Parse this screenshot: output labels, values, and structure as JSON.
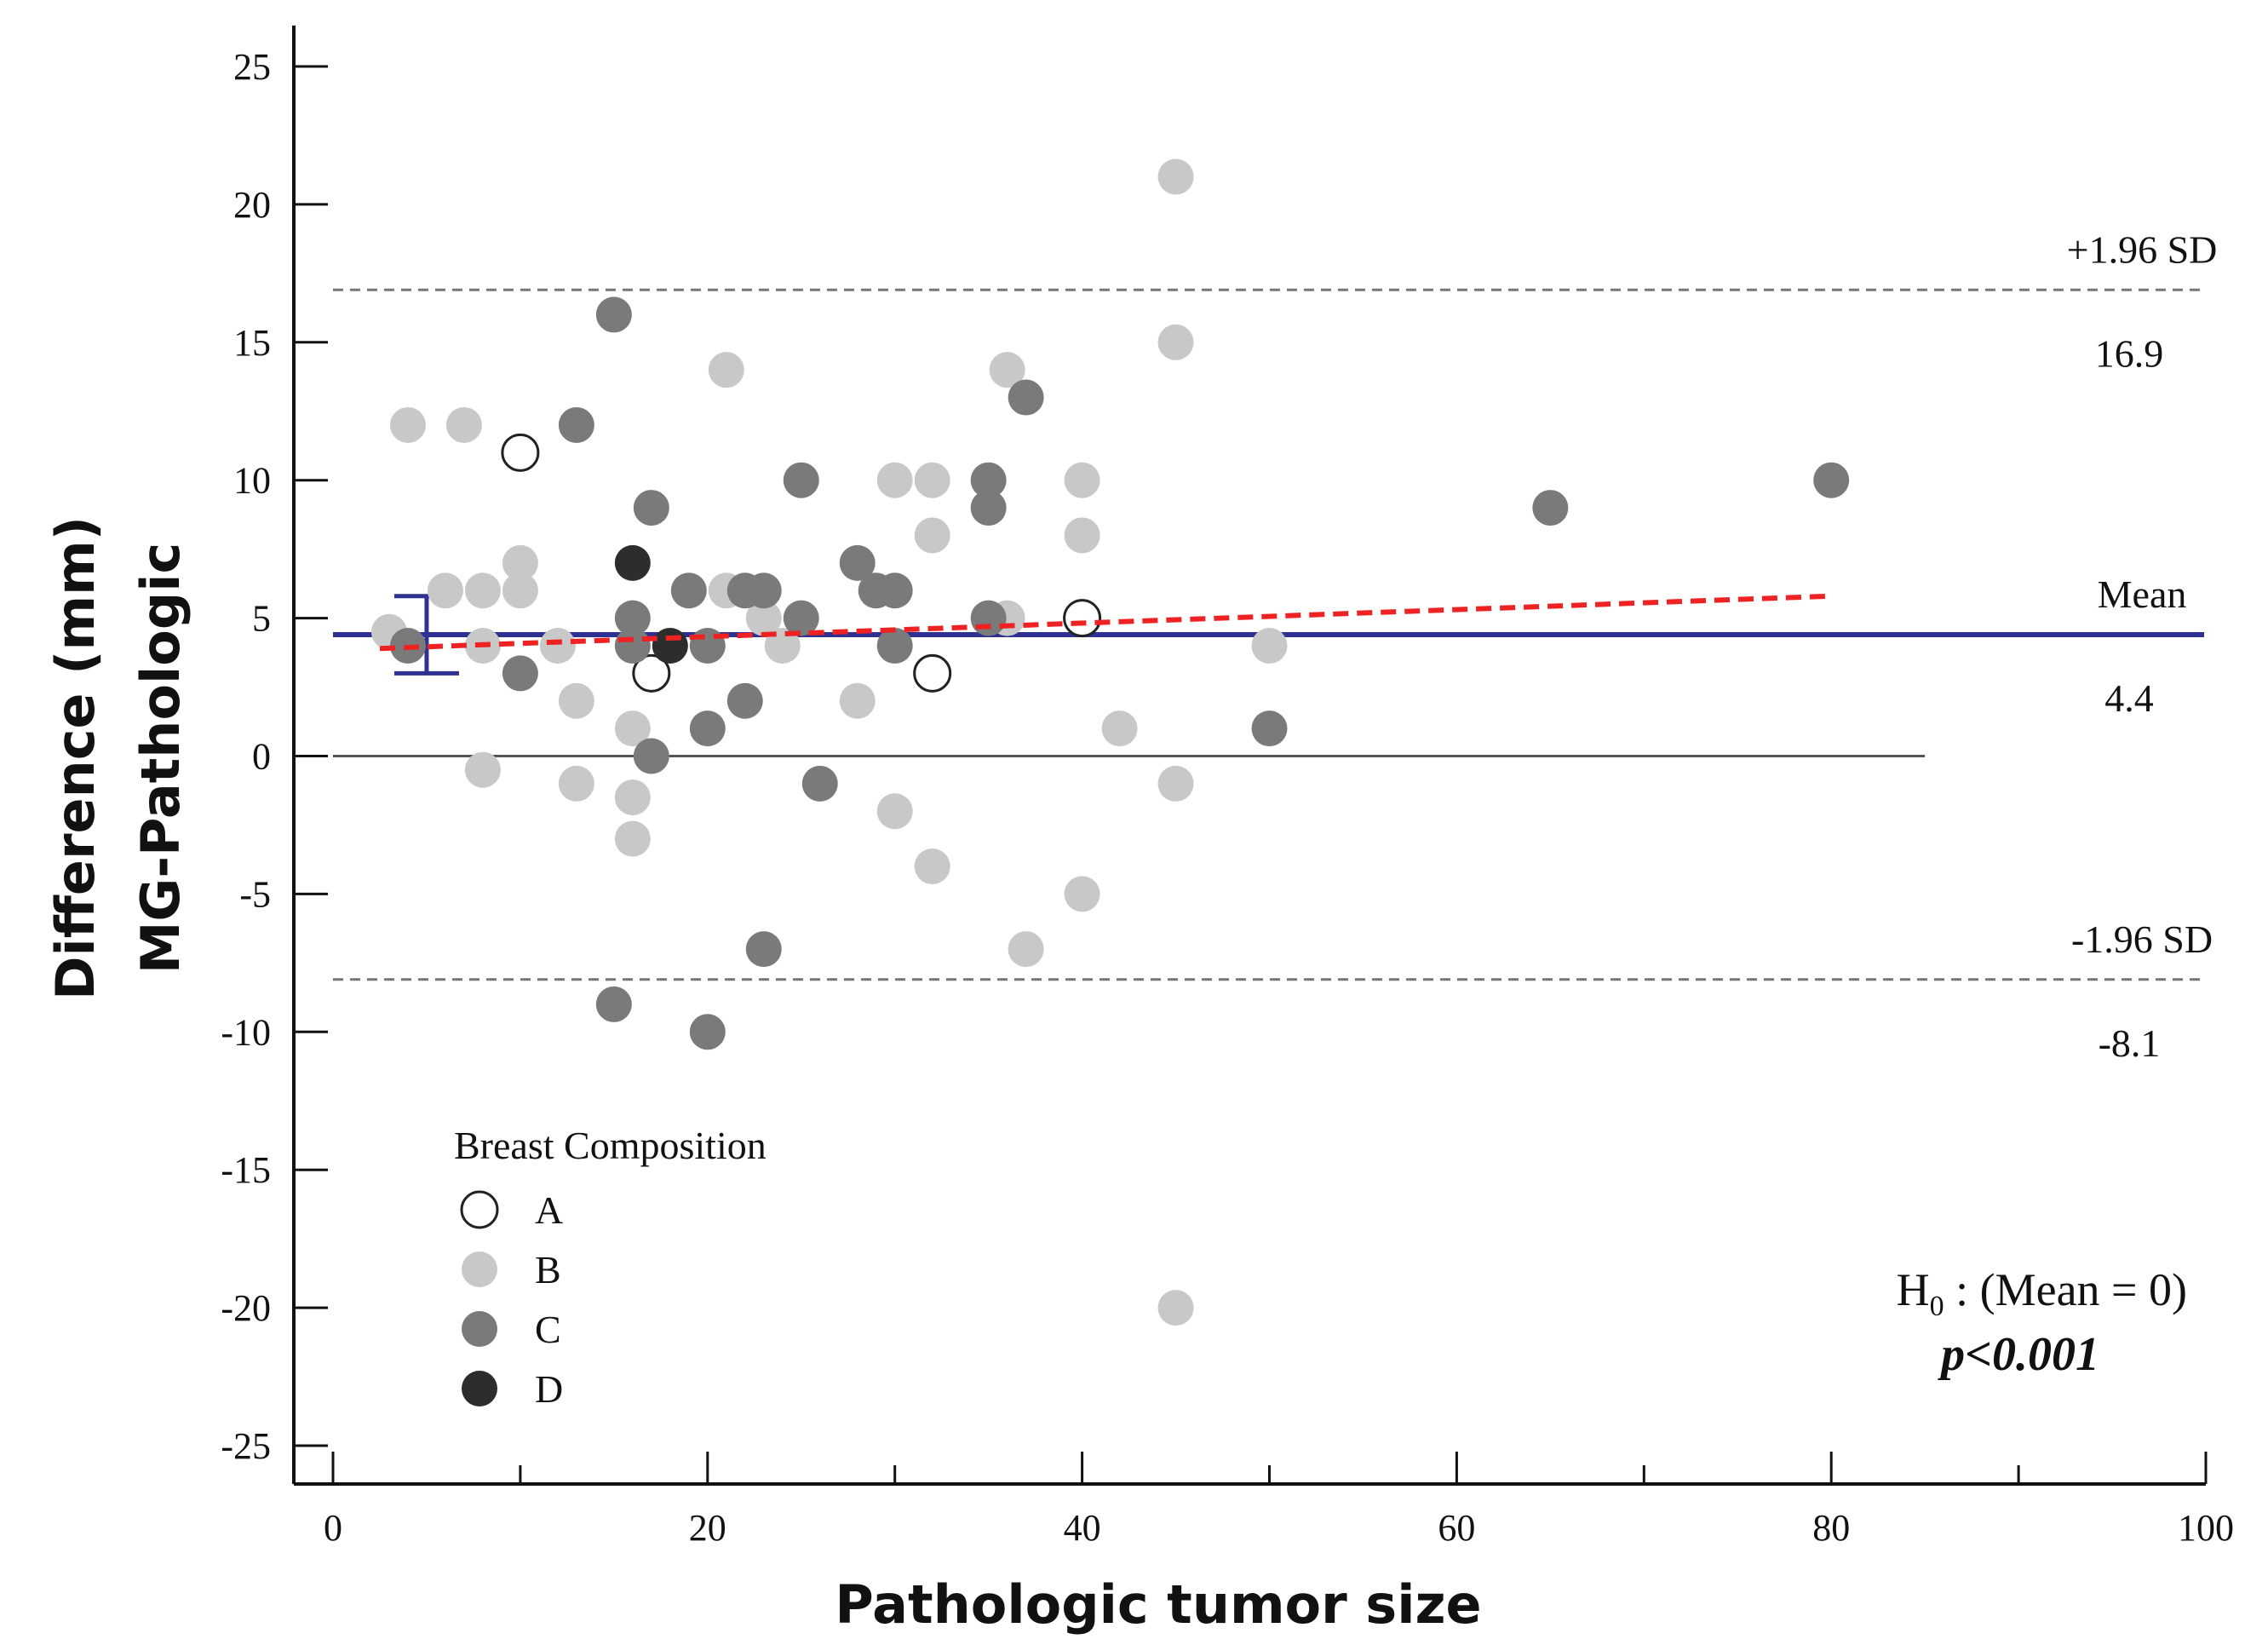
{
  "chart_data": {
    "type": "scatter",
    "title": "",
    "xlabel": "Pathologic tumor size",
    "ylabel_lines": [
      "Difference (mm)",
      "MG-Pathologic"
    ],
    "xlim": [
      0,
      100
    ],
    "ylim": [
      -26,
      26
    ],
    "x_ticks": [
      0,
      20,
      40,
      60,
      80,
      100
    ],
    "x_tick_labels": [
      "0",
      "20",
      "40",
      "60",
      "80",
      "100"
    ],
    "x_minor_ticks": [
      10,
      30,
      50,
      70,
      90
    ],
    "y_ticks": [
      25,
      20,
      15,
      10,
      5,
      0,
      -5,
      -10,
      -15,
      -20,
      -25
    ],
    "y_tick_labels": [
      "25",
      "20",
      "15",
      "10",
      "5",
      "0",
      "-5",
      "-10",
      "-15",
      "-20",
      "-25"
    ],
    "reference_lines": [
      {
        "name": "upper-loa",
        "value": 16.9,
        "style": "dashed",
        "color": "#777777",
        "label_top": "+1.96 SD",
        "label_bottom": "16.9"
      },
      {
        "name": "mean",
        "value": 4.4,
        "style": "solid",
        "color": "#2e3192",
        "label_top": "Mean",
        "label_bottom": "4.4"
      },
      {
        "name": "lower-loa",
        "value": -8.1,
        "style": "dashed",
        "color": "#777777",
        "label_top": "-1.96 SD",
        "label_bottom": "-8.1"
      },
      {
        "name": "zero",
        "value": 0,
        "style": "solid",
        "color": "#555555",
        "x_range": [
          0,
          85
        ]
      }
    ],
    "mean_ci": {
      "x": 5,
      "low": 3.0,
      "high": 5.8,
      "color": "#2e3192"
    },
    "regression_line": {
      "x": [
        2.5,
        80
      ],
      "y": [
        3.9,
        5.8
      ],
      "color": "#ee2222",
      "style": "dashed"
    },
    "legend": {
      "title": "Breast Composition",
      "entries": [
        {
          "name": "A",
          "fill": "#ffffff",
          "stroke": "#222222"
        },
        {
          "name": "B",
          "fill": "#c8c8c8",
          "stroke": "none"
        },
        {
          "name": "C",
          "fill": "#7a7a7a",
          "stroke": "none"
        },
        {
          "name": "D",
          "fill": "#2d2d2d",
          "stroke": "none"
        }
      ]
    },
    "annotation": {
      "hypothesis_prefix": "H",
      "hypothesis_subscript": "0",
      "hypothesis_rest": " : (Mean = 0)",
      "p_value": "p<0.001"
    },
    "series": [
      {
        "name": "A",
        "points": [
          [
            10,
            11
          ],
          [
            17,
            3
          ],
          [
            32,
            3
          ],
          [
            40,
            5
          ]
        ]
      },
      {
        "name": "B",
        "points": [
          [
            3,
            4.5
          ],
          [
            4,
            12
          ],
          [
            7,
            12
          ],
          [
            6,
            6
          ],
          [
            8,
            6
          ],
          [
            8,
            4
          ],
          [
            8,
            -0.5
          ],
          [
            10,
            7
          ],
          [
            10,
            6
          ],
          [
            12,
            4
          ],
          [
            13,
            2
          ],
          [
            13,
            -1
          ],
          [
            16,
            1
          ],
          [
            16,
            -1.5
          ],
          [
            16,
            -3
          ],
          [
            21,
            14
          ],
          [
            21,
            6
          ],
          [
            23,
            5
          ],
          [
            24,
            4
          ],
          [
            28,
            2
          ],
          [
            30,
            10
          ],
          [
            30,
            -2
          ],
          [
            32,
            10
          ],
          [
            32,
            8
          ],
          [
            32,
            -4
          ],
          [
            36,
            14
          ],
          [
            36,
            5
          ],
          [
            37,
            -7
          ],
          [
            40,
            10
          ],
          [
            40,
            8
          ],
          [
            40,
            -5
          ],
          [
            42,
            1
          ],
          [
            45,
            21
          ],
          [
            45,
            15
          ],
          [
            45,
            -1
          ],
          [
            45,
            -20
          ],
          [
            50,
            4
          ]
        ]
      },
      {
        "name": "C",
        "points": [
          [
            4,
            4
          ],
          [
            10,
            3
          ],
          [
            13,
            12
          ],
          [
            15,
            16
          ],
          [
            15,
            -9
          ],
          [
            16,
            5
          ],
          [
            16,
            4
          ],
          [
            17,
            9
          ],
          [
            17,
            0
          ],
          [
            19,
            6
          ],
          [
            20,
            4
          ],
          [
            20,
            1
          ],
          [
            20,
            -10
          ],
          [
            22,
            6
          ],
          [
            22,
            2
          ],
          [
            23,
            6
          ],
          [
            23,
            -7
          ],
          [
            25,
            10
          ],
          [
            25,
            5
          ],
          [
            26,
            -1
          ],
          [
            28,
            7
          ],
          [
            29,
            6
          ],
          [
            30,
            6
          ],
          [
            30,
            4
          ],
          [
            35,
            10
          ],
          [
            35,
            9
          ],
          [
            35,
            5
          ],
          [
            37,
            13
          ],
          [
            50,
            1
          ],
          [
            65,
            9
          ],
          [
            80,
            10
          ]
        ]
      },
      {
        "name": "D",
        "points": [
          [
            16,
            7
          ],
          [
            18,
            4
          ]
        ]
      }
    ]
  }
}
